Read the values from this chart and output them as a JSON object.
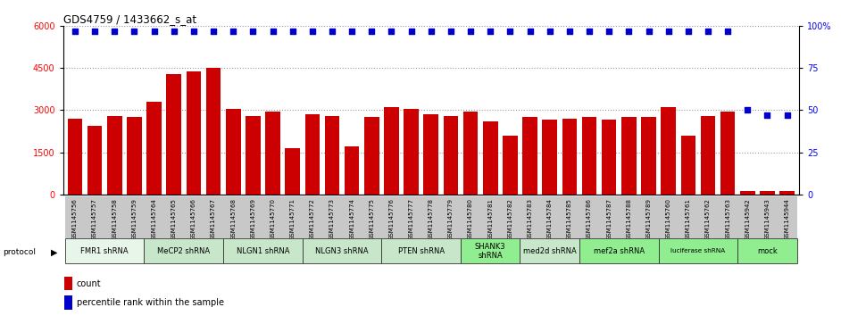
{
  "title": "GDS4759 / 1433662_s_at",
  "samples": [
    "GSM1145756",
    "GSM1145757",
    "GSM1145758",
    "GSM1145759",
    "GSM1145764",
    "GSM1145765",
    "GSM1145766",
    "GSM1145767",
    "GSM1145768",
    "GSM1145769",
    "GSM1145770",
    "GSM1145771",
    "GSM1145772",
    "GSM1145773",
    "GSM1145774",
    "GSM1145775",
    "GSM1145776",
    "GSM1145777",
    "GSM1145778",
    "GSM1145779",
    "GSM1145780",
    "GSM1145781",
    "GSM1145782",
    "GSM1145783",
    "GSM1145784",
    "GSM1145785",
    "GSM1145786",
    "GSM1145787",
    "GSM1145788",
    "GSM1145789",
    "GSM1145760",
    "GSM1145761",
    "GSM1145762",
    "GSM1145763",
    "GSM1145942",
    "GSM1145943",
    "GSM1145944"
  ],
  "counts": [
    2700,
    2450,
    2800,
    2750,
    3300,
    4300,
    4380,
    4500,
    3050,
    2800,
    2950,
    1650,
    2850,
    2800,
    1700,
    2750,
    3100,
    3050,
    2850,
    2800,
    2950,
    2600,
    2100,
    2750,
    2650,
    2700,
    2750,
    2650,
    2750,
    2750,
    3100,
    2100,
    2800,
    2950,
    120,
    120,
    120
  ],
  "percentiles": [
    97,
    97,
    97,
    97,
    97,
    97,
    97,
    97,
    97,
    97,
    97,
    97,
    97,
    97,
    97,
    97,
    97,
    97,
    97,
    97,
    97,
    97,
    97,
    97,
    97,
    97,
    97,
    97,
    97,
    97,
    97,
    97,
    97,
    97,
    50,
    47,
    47
  ],
  "groups": [
    {
      "label": "FMR1 shRNA",
      "start": 0,
      "end": 4,
      "color": "#e8f5e9"
    },
    {
      "label": "MeCP2 shRNA",
      "start": 4,
      "end": 8,
      "color": "#c8e6c9"
    },
    {
      "label": "NLGN1 shRNA",
      "start": 8,
      "end": 12,
      "color": "#c8e6c9"
    },
    {
      "label": "NLGN3 shRNA",
      "start": 12,
      "end": 16,
      "color": "#c8e6c9"
    },
    {
      "label": "PTEN shRNA",
      "start": 16,
      "end": 20,
      "color": "#c8e6c9"
    },
    {
      "label": "SHANK3\nshRNA",
      "start": 20,
      "end": 23,
      "color": "#90ee90"
    },
    {
      "label": "med2d shRNA",
      "start": 23,
      "end": 26,
      "color": "#c8e6c9"
    },
    {
      "label": "mef2a shRNA",
      "start": 26,
      "end": 30,
      "color": "#90ee90"
    },
    {
      "label": "luciferase shRNA",
      "start": 30,
      "end": 34,
      "color": "#90ee90"
    },
    {
      "label": "mock",
      "start": 34,
      "end": 37,
      "color": "#90ee90"
    }
  ],
  "bar_color": "#cc0000",
  "percentile_color": "#0000cc",
  "ylim_left": [
    0,
    6000
  ],
  "ylim_right": [
    0,
    100
  ],
  "yticks_left": [
    0,
    1500,
    3000,
    4500,
    6000
  ],
  "yticks_right": [
    0,
    25,
    50,
    75,
    100
  ],
  "fig_bg": "#ffffff",
  "plot_bg": "#ffffff"
}
